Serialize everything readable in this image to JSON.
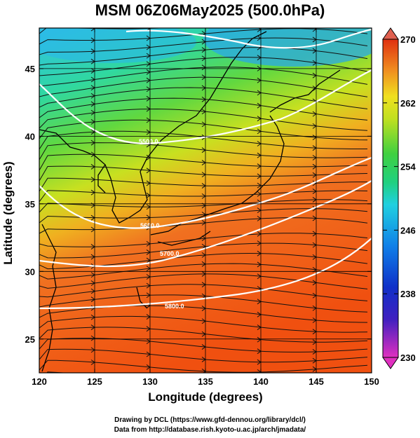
{
  "title": "MSM 06Z06May2025 (500.0hPa)",
  "x_axis": {
    "label": "Longitude (degrees)",
    "min": 120,
    "max": 150,
    "ticks": [
      "120",
      "125",
      "130",
      "135",
      "140",
      "145",
      "150"
    ]
  },
  "y_axis": {
    "label": "Latitude  (degrees)",
    "min": 22.5,
    "max": 48,
    "ticks": [
      "25",
      "30",
      "35",
      "40",
      "45"
    ]
  },
  "colorbar": {
    "min": 230,
    "max": 270,
    "ticks": [
      "230",
      "238",
      "246",
      "254",
      "262",
      "270"
    ],
    "colors": [
      "#e030c0",
      "#2020b0",
      "#1060e0",
      "#20c8e8",
      "#20d870",
      "#b0e020",
      "#f0e020",
      "#f08020",
      "#e03010"
    ]
  },
  "contour_labels": [
    "5800.0",
    "5700.0",
    "5600.0",
    "5500.0"
  ],
  "field": "temperature (K) with wind streamlines and geopotential height contours",
  "credits": [
    "Drawing by DCL (https://www.gfd-dennou.org/library/dcl/)",
    "Data from http://database.rish.kyoto-u.ac.jp/arch/jmadata/"
  ]
}
